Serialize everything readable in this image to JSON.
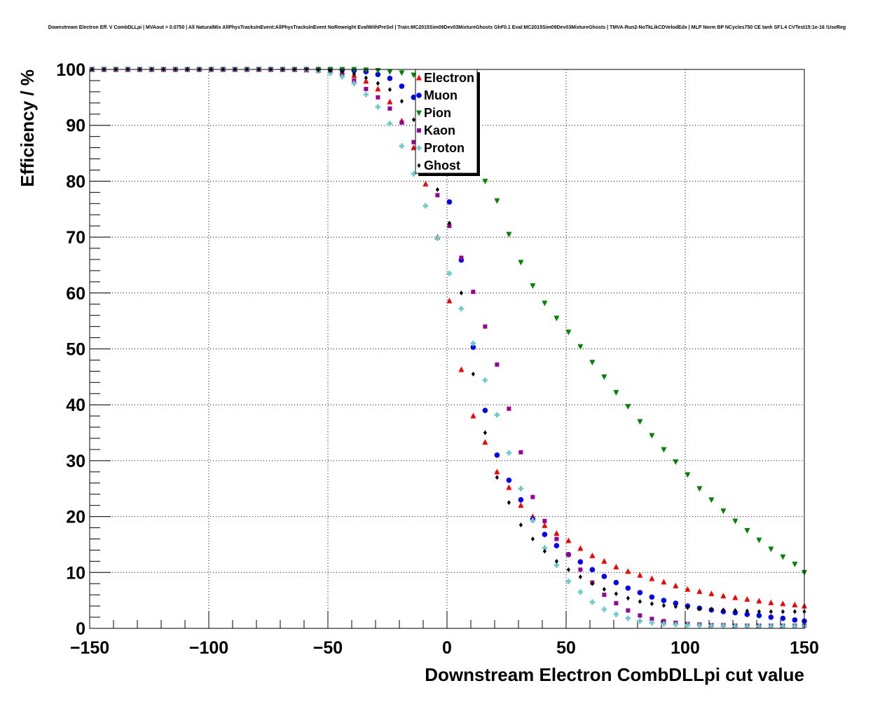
{
  "chart_data": {
    "type": "scatter",
    "title": "Downstream Electron Eff. V CombDLLpi | MVAout > 0.0750 | All NaturalMix AllPhysTracksInEvent:AllPhysTracksInEvent NoReweight EvalWithPreSel | Train:MC2015Sim09Dev03MixtureGhosts GhF0.1 Eval:MC2015Sim09Dev03MixtureGhosts | TMVA-Run2-NoTkLikCDVelodEdx | MLP Norm BP NCycles750 CE tanh SF1.4 CVTest15:1e-16 !UseReg",
    "xlabel": "Downstream Electron CombDLLpi cut value",
    "ylabel": "Efficiency / %",
    "xlim": [
      -150,
      150
    ],
    "ylim": [
      0,
      100
    ],
    "x_ticks": [
      -150,
      -100,
      -50,
      0,
      50,
      100,
      150
    ],
    "x_tick_labels": [
      "−150",
      "−100",
      "−50",
      "0",
      "50",
      "100",
      "150"
    ],
    "y_ticks": [
      0,
      10,
      20,
      30,
      40,
      50,
      60,
      70,
      80,
      90,
      100
    ],
    "y_tick_labels": [
      "0",
      "10",
      "20",
      "30",
      "40",
      "50",
      "60",
      "70",
      "80",
      "90",
      "100"
    ],
    "grid": true,
    "legend_position": "top-center",
    "x": [
      -149,
      -144,
      -139,
      -134,
      -129,
      -124,
      -119,
      -114,
      -109,
      -104,
      -99,
      -94,
      -89,
      -84,
      -79,
      -74,
      -69,
      -64,
      -59,
      -54,
      -49,
      -44,
      -39,
      -34,
      -29,
      -24,
      -19,
      -14,
      -9,
      -4,
      1,
      6,
      11,
      16,
      21,
      26,
      31,
      36,
      41,
      46,
      51,
      56,
      61,
      66,
      71,
      76,
      81,
      86,
      91,
      96,
      101,
      106,
      111,
      116,
      121,
      126,
      131,
      136,
      141,
      146,
      150
    ],
    "series": [
      {
        "name": "Electron",
        "color": "#ff0000",
        "marker": "triangle-up",
        "values": [
          100,
          100,
          100,
          100,
          100,
          100,
          100,
          100,
          100,
          100,
          100,
          100,
          100,
          100,
          100,
          100,
          100,
          100,
          99.9,
          99.9,
          99.8,
          99.6,
          98.9,
          97.9,
          96.5,
          94.2,
          90.8,
          86.0,
          79.5,
          70.0,
          58.6,
          46.3,
          38.0,
          33.3,
          28.0,
          25.2,
          22.0,
          20.0,
          18.4,
          17.0,
          15.7,
          14.3,
          13.0,
          12.0,
          11.0,
          10.2,
          9.5,
          8.9,
          8.3,
          7.6,
          7.0,
          6.6,
          6.2,
          5.8,
          5.5,
          5.2,
          4.9,
          4.6,
          4.4,
          4.2,
          4.0
        ]
      },
      {
        "name": "Muon",
        "color": "#0000ff",
        "marker": "circle",
        "values": [
          100,
          100,
          100,
          100,
          100,
          100,
          100,
          100,
          100,
          100,
          100,
          100,
          100,
          100,
          100,
          100,
          100,
          100,
          100,
          100,
          100,
          99.9,
          99.8,
          99.6,
          99.1,
          98.4,
          97.0,
          95.0,
          90.5,
          83.0,
          76.3,
          65.9,
          50.3,
          39.0,
          31.0,
          26.5,
          23.0,
          19.5,
          16.8,
          14.8,
          13.2,
          11.9,
          10.5,
          9.3,
          8.2,
          7.2,
          6.4,
          5.6,
          5.0,
          4.5,
          4.0,
          3.6,
          3.3,
          3.0,
          2.8,
          2.5,
          2.3,
          2.0,
          1.8,
          1.5,
          1.3
        ]
      },
      {
        "name": "Pion",
        "color": "#008800",
        "marker": "triangle-down",
        "values": [
          100,
          100,
          100,
          100,
          100,
          100,
          100,
          100,
          100,
          100,
          100,
          100,
          100,
          100,
          100,
          100,
          100,
          100,
          100,
          100,
          100,
          100,
          100,
          99.9,
          99.8,
          99.6,
          99.4,
          99.0,
          98.0,
          96.2,
          94.0,
          90.5,
          85.0,
          80.0,
          76.5,
          70.5,
          65.5,
          61.3,
          58.2,
          55.5,
          53.0,
          50.4,
          47.6,
          45.0,
          42.2,
          39.7,
          37.0,
          34.5,
          32.0,
          29.8,
          27.5,
          25.0,
          23.0,
          21.0,
          19.2,
          17.5,
          15.8,
          14.2,
          12.8,
          11.5,
          10.0
        ]
      },
      {
        "name": "Kaon",
        "color": "#990099",
        "marker": "square",
        "values": [
          100,
          100,
          100,
          100,
          100,
          100,
          100,
          100,
          100,
          100,
          100,
          100,
          100,
          100,
          100,
          100,
          100,
          100,
          99.9,
          99.8,
          99.5,
          99.0,
          98.0,
          96.5,
          95.0,
          93.0,
          90.5,
          87.0,
          82.0,
          77.5,
          72.0,
          66.3,
          60.2,
          54.0,
          47.2,
          39.3,
          31.5,
          23.5,
          19.2,
          16.0,
          13.2,
          10.5,
          8.2,
          6.0,
          4.5,
          3.2,
          2.3,
          1.7,
          1.3,
          1.0,
          0.8,
          0.7,
          0.6,
          0.6,
          0.5,
          0.5,
          0.5,
          0.5,
          0.5,
          0.5,
          0.5
        ]
      },
      {
        "name": "Proton",
        "color": "#66cccc",
        "marker": "cross",
        "values": [
          100,
          100,
          100,
          100,
          100,
          100,
          100,
          100,
          100,
          100,
          100,
          100,
          100,
          100,
          100,
          100,
          100,
          100,
          99.9,
          99.7,
          99.3,
          98.7,
          97.5,
          95.5,
          93.3,
          90.3,
          86.3,
          81.3,
          75.6,
          69.8,
          63.5,
          57.2,
          51.0,
          44.4,
          38.2,
          31.4,
          25.0,
          19.3,
          14.4,
          11.3,
          8.4,
          6.5,
          4.7,
          3.4,
          2.5,
          1.8,
          1.3,
          1.0,
          0.8,
          0.7,
          0.6,
          0.5,
          0.5,
          0.5,
          0.4,
          0.4,
          0.4,
          0.4,
          0.4,
          0.4,
          0.4
        ]
      },
      {
        "name": "Ghost",
        "color": "#000000",
        "marker": "diamond",
        "values": [
          100,
          100,
          100,
          100,
          100,
          100,
          100,
          100,
          100,
          100,
          100,
          100,
          100,
          100,
          100,
          100,
          100,
          100,
          100,
          99.9,
          99.8,
          99.6,
          99.2,
          98.5,
          97.5,
          96.4,
          94.3,
          91.0,
          85.5,
          78.5,
          72.5,
          60.0,
          45.5,
          35.0,
          27.0,
          22.5,
          18.5,
          16.0,
          13.8,
          12.0,
          10.5,
          9.2,
          8.0,
          7.0,
          6.2,
          5.4,
          4.8,
          4.4,
          4.1,
          3.9,
          3.7,
          3.5,
          3.4,
          3.3,
          3.2,
          3.1,
          3.0,
          3.0,
          3.0,
          3.0,
          3.0
        ]
      }
    ]
  }
}
